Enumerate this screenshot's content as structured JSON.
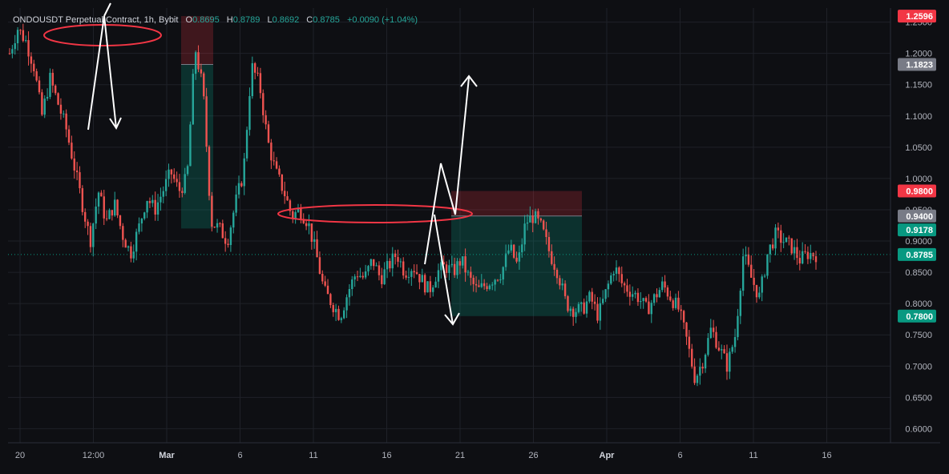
{
  "header": {
    "symbol": "ONDOUSDT Perpetual Contract, 1h, Bybit",
    "o_label": "O",
    "o_value": "0.8695",
    "h_label": "H",
    "h_value": "0.8789",
    "l_label": "L",
    "l_value": "0.8692",
    "c_label": "C",
    "c_value": "0.8785",
    "change": "+0.0090 (+1.04%)"
  },
  "price_axis": {
    "ticks": [
      "1.2500",
      "1.2000",
      "1.1500",
      "1.1000",
      "1.0500",
      "1.0000",
      "0.9500",
      "0.9000",
      "0.8500",
      "0.8000",
      "0.7500",
      "0.7000",
      "0.6500",
      "0.6000"
    ],
    "tick_values": [
      1.25,
      1.2,
      1.15,
      1.1,
      1.05,
      1.0,
      0.95,
      0.9,
      0.85,
      0.8,
      0.75,
      0.7,
      0.65,
      0.6
    ]
  },
  "time_axis": {
    "labels": [
      "20",
      "12:00",
      "Mar",
      "6",
      "11",
      "16",
      "21",
      "26",
      "Apr",
      "6",
      "11",
      "16"
    ],
    "bold": [
      false,
      false,
      true,
      false,
      false,
      false,
      false,
      false,
      true,
      false,
      false,
      false
    ]
  },
  "price_tags": [
    {
      "label": "1.2596",
      "value": 1.2596,
      "color": "#f23645"
    },
    {
      "label": "1.1823",
      "value": 1.1823,
      "color": "#787b86"
    },
    {
      "label": "0.9800",
      "value": 0.98,
      "color": "#f23645"
    },
    {
      "label": "0.9400",
      "value": 0.94,
      "color": "#787b86"
    },
    {
      "label": "0.9178",
      "value": 0.9178,
      "color": "#089981"
    },
    {
      "label": "0.8785",
      "value": 0.8785,
      "color": "#089981"
    },
    {
      "label": "0.7800",
      "value": 0.78,
      "color": "#089981"
    }
  ],
  "colors": {
    "up": "#26a69a",
    "down": "#ef5350",
    "background": "#0e0f13",
    "grid": "#1f2128",
    "text": "#b2b5be",
    "accent_red": "#f23645",
    "accent_green": "#089981"
  },
  "chart_data": {
    "type": "candlestick",
    "title": "ONDOUSDT Perpetual Contract, 1h, Bybit",
    "ylim": [
      0.58,
      1.27
    ],
    "current_price": 0.8785,
    "series": [
      {
        "name": "price",
        "x_start": "Feb 20",
        "x_end": "Apr 15",
        "values": [
          1.2,
          1.24,
          1.22,
          1.18,
          1.1,
          1.16,
          1.12,
          1.08,
          1.02,
          0.96,
          0.9,
          0.98,
          0.93,
          0.96,
          0.91,
          0.88,
          0.92,
          0.97,
          0.95,
          0.98,
          1.01,
          0.98,
          1.0,
          1.21,
          1.14,
          0.93,
          0.92,
          0.9,
          0.96,
          1.01,
          1.18,
          1.15,
          1.06,
          1.01,
          0.98,
          0.94,
          0.95,
          0.93,
          0.88,
          0.82,
          0.8,
          0.78,
          0.82,
          0.85,
          0.84,
          0.87,
          0.84,
          0.86,
          0.88,
          0.85,
          0.86,
          0.84,
          0.82,
          0.85,
          0.86,
          0.85,
          0.87,
          0.84,
          0.82,
          0.83,
          0.84,
          0.85,
          0.89,
          0.86,
          0.93,
          0.94,
          0.92,
          0.88,
          0.85,
          0.8,
          0.79,
          0.79,
          0.81,
          0.78,
          0.82,
          0.86,
          0.83,
          0.82,
          0.81,
          0.79,
          0.81,
          0.83,
          0.81,
          0.79,
          0.74,
          0.68,
          0.71,
          0.76,
          0.73,
          0.7,
          0.75,
          0.88,
          0.84,
          0.81,
          0.88,
          0.91,
          0.9,
          0.89,
          0.87,
          0.88,
          0.8785
        ]
      }
    ],
    "positions": [
      {
        "side": "short",
        "entry": 1.1823,
        "stop": 1.2596,
        "target": 0.92
      },
      {
        "side": "short",
        "entry": 0.94,
        "stop": 0.98,
        "target": 0.78
      }
    ]
  }
}
